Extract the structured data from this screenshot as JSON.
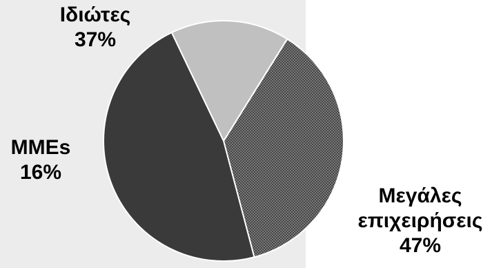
{
  "chart_data": {
    "type": "pie",
    "title": "",
    "slices": [
      {
        "label": "Ιδιώτες",
        "value": 37,
        "display": "37%",
        "color": "#4a4a4a",
        "pattern": "dotted"
      },
      {
        "label": "Μεγάλες επιχειρήσεις",
        "label_lines": [
          "Μεγάλες",
          "επιχειρήσεις"
        ],
        "value": 47,
        "display": "47%",
        "color": "#3a3a3a",
        "pattern": "solid"
      },
      {
        "label": "MMEs",
        "value": 16,
        "display": "16%",
        "color": "#c0c0c0",
        "pattern": "solid"
      }
    ],
    "start_angle_deg": 58,
    "direction": "clockwise",
    "colors": {
      "plot_background": "#ececec",
      "slice_border": "#ffffff"
    }
  }
}
